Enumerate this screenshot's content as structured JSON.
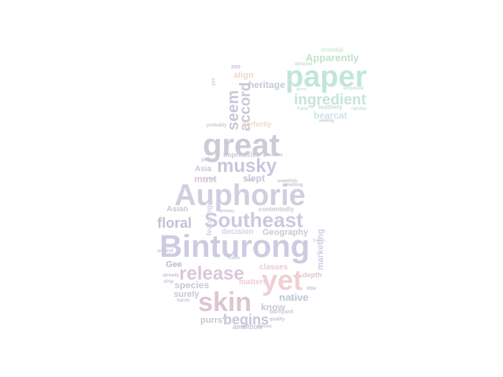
{
  "words": [
    {
      "text": "Binturong",
      "color": "#cdcbe0"
    },
    {
      "text": "Auphorie",
      "color": "#d3cde0"
    },
    {
      "text": "great",
      "color": "#cfc9d6"
    },
    {
      "text": "skin",
      "color": "#dcc6d2"
    },
    {
      "text": "yet",
      "color": "#f1cfd6"
    },
    {
      "text": "paper",
      "color": "#c2e6d6"
    },
    {
      "text": "Southeast",
      "color": "#cfc7de"
    },
    {
      "text": "release",
      "color": "#dcc7d9"
    },
    {
      "text": "musky",
      "color": "#c7c6de"
    },
    {
      "text": "ingredient",
      "color": "#c6e4da"
    },
    {
      "text": "seem",
      "color": "#c6c8d8"
    },
    {
      "text": "accord",
      "color": "#c9c7d9"
    },
    {
      "text": "floral",
      "color": "#c0c2d4"
    },
    {
      "text": "begins",
      "color": "#c8c6d8"
    },
    {
      "text": "Apparently",
      "color": "#c2e2c8"
    },
    {
      "text": "bearcat",
      "color": "#cbe3e8"
    },
    {
      "text": "heritage",
      "color": "#c5c7d6"
    },
    {
      "text": "native",
      "color": "#c3c5d9"
    },
    {
      "text": "species",
      "color": "#c6c8d8"
    },
    {
      "text": "classes",
      "color": "#eec9d0"
    },
    {
      "text": "know",
      "color": "#c9c8d8"
    },
    {
      "text": "matters",
      "color": "#efcbd3"
    },
    {
      "text": "surely",
      "color": "#c7c8d6"
    },
    {
      "text": "Geography",
      "color": "#c8c9d8"
    },
    {
      "text": "decision",
      "color": "#d0d4e6"
    },
    {
      "text": "contentedly",
      "color": "#c8c6d8"
    },
    {
      "text": "must",
      "color": "#ddc4dc"
    },
    {
      "text": "slept",
      "color": "#c6c6d6"
    },
    {
      "text": "Asia",
      "color": "#c6c7d8"
    },
    {
      "text": "Asian",
      "color": "#c7c8d8"
    },
    {
      "text": "Gee",
      "color": "#b9bccd"
    },
    {
      "text": "purrs'",
      "color": "#c7c5d7"
    },
    {
      "text": "marketing",
      "color": "#ccd0e2"
    },
    {
      "text": "align",
      "color": "#f3d8c8"
    },
    {
      "text": "oriental",
      "color": "#cde8dc"
    },
    {
      "text": "leathery",
      "color": "#c8e2d6"
    },
    {
      "text": "impressive",
      "color": "#c9c8d8"
    },
    {
      "text": "perfectly",
      "color": "#f1d8c7"
    },
    {
      "text": "ambition",
      "color": "#c5c7d6"
    },
    {
      "text": "depth",
      "color": "#e3c6d2"
    },
    {
      "text": "barnyard",
      "color": "#c8c7d8"
    },
    {
      "text": "featuring",
      "color": "#d0d3e4"
    },
    {
      "text": "zoo",
      "color": "#c2c2cf"
    },
    {
      "text": "yes",
      "color": "#cbd0e0"
    },
    {
      "text": "probably",
      "color": "#c8c8d6"
    },
    {
      "text": "people",
      "color": "#c5c6d6"
    },
    {
      "text": "trying",
      "color": "#c5c6d6"
    },
    {
      "text": "around",
      "color": "#c5c6d6"
    },
    {
      "text": "already",
      "color": "#c5c6d6"
    },
    {
      "text": "strip",
      "color": "#c5c6d6"
    },
    {
      "text": "harsh",
      "color": "#c5c6d6"
    },
    {
      "text": "seeking",
      "color": "#c5c6d6"
    },
    {
      "text": "Fans",
      "color": "#c7e3d5"
    },
    {
      "text": "raisins",
      "color": "#c7e3d5"
    },
    {
      "text": "delayed",
      "color": "#c7e3d5"
    },
    {
      "text": "aspect",
      "color": "#c7e3d5"
    },
    {
      "text": "quality",
      "color": "#c5c6d6"
    },
    {
      "text": "spices",
      "color": "#c5c6d6"
    },
    {
      "text": "little",
      "color": "#c5c6d6"
    },
    {
      "text": "focus",
      "color": "#d6d9ea"
    },
    {
      "text": "smelling",
      "color": "#c5c6d6"
    },
    {
      "text": "sweetish",
      "color": "#c5c6d6"
    },
    {
      "text": "uses",
      "color": "#c5c6d6"
    },
    {
      "text": "primary",
      "color": "#c5c6d6"
    },
    {
      "text": "gourmand",
      "color": "#c5c6d6"
    },
    {
      "text": "insists",
      "color": "#c5c6d6"
    },
    {
      "text": "exquisite",
      "color": "#c7e3d5"
    },
    {
      "text": "given",
      "color": "#c7e3d5"
    }
  ]
}
